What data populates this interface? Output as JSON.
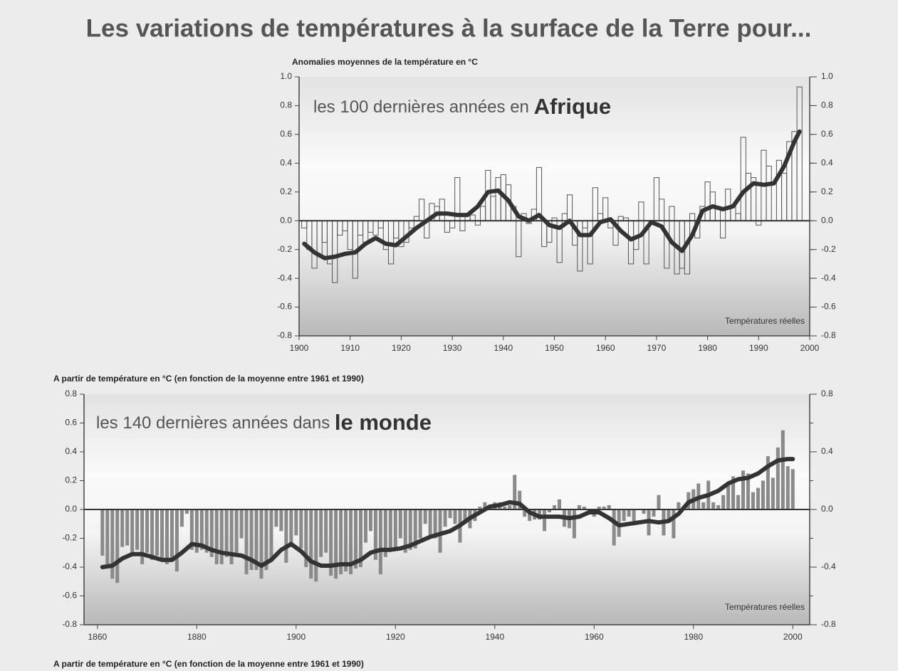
{
  "title": "Les variations de températures à la surface de la Terre pour...",
  "footer": "A partir de température en °C (en fonction de la moyenne entre 1961 et 1990)",
  "chart_data": [
    {
      "type": "step",
      "y_label": "Anomalies moyennes de la température en °C",
      "annotation": "les 100 dernières années en ",
      "annotation_bold": "Afrique",
      "note": "Températures réelles",
      "color": "#555555",
      "x": [
        1901,
        1902,
        1903,
        1904,
        1905,
        1906,
        1907,
        1908,
        1909,
        1910,
        1911,
        1912,
        1913,
        1914,
        1915,
        1916,
        1917,
        1918,
        1919,
        1920,
        1921,
        1922,
        1923,
        1924,
        1925,
        1926,
        1927,
        1928,
        1929,
        1930,
        1931,
        1932,
        1933,
        1934,
        1935,
        1936,
        1937,
        1938,
        1939,
        1940,
        1941,
        1942,
        1943,
        1944,
        1945,
        1946,
        1947,
        1948,
        1949,
        1950,
        1951,
        1952,
        1953,
        1954,
        1955,
        1956,
        1957,
        1958,
        1959,
        1960,
        1961,
        1962,
        1963,
        1964,
        1965,
        1966,
        1967,
        1968,
        1969,
        1970,
        1971,
        1972,
        1973,
        1974,
        1975,
        1976,
        1977,
        1978,
        1979,
        1980,
        1981,
        1982,
        1983,
        1984,
        1985,
        1986,
        1987,
        1988,
        1989,
        1990,
        1991,
        1992,
        1993,
        1994,
        1995,
        1996,
        1997,
        1998
      ],
      "values": [
        -0.05,
        -0.2,
        -0.33,
        -0.25,
        -0.15,
        -0.3,
        -0.43,
        -0.1,
        -0.07,
        -0.2,
        -0.4,
        -0.1,
        -0.15,
        -0.08,
        -0.1,
        -0.05,
        -0.2,
        -0.3,
        -0.12,
        -0.18,
        -0.15,
        -0.05,
        0.03,
        0.15,
        -0.12,
        0.12,
        0.1,
        0.15,
        -0.08,
        -0.05,
        0.3,
        -0.07,
        0.05,
        0.04,
        -0.03,
        0.1,
        0.35,
        0.17,
        0.3,
        0.32,
        0.25,
        0.1,
        -0.25,
        0.05,
        -0.02,
        0.08,
        0.37,
        -0.18,
        -0.15,
        0.02,
        -0.29,
        0.05,
        0.18,
        -0.17,
        -0.35,
        -0.05,
        -0.3,
        0.23,
        0.05,
        0.16,
        -0.05,
        -0.17,
        0.03,
        0.02,
        -0.3,
        -0.2,
        0.13,
        -0.3,
        0.0,
        0.3,
        0.15,
        -0.33,
        0.1,
        -0.37,
        -0.33,
        -0.37,
        0.05,
        -0.12,
        0.1,
        0.27,
        0.2,
        0.1,
        -0.12,
        0.22,
        0.1,
        0.05,
        0.58,
        0.33,
        0.3,
        -0.03,
        0.49,
        0.38,
        0.0,
        0.42,
        0.33,
        0.55,
        0.62,
        0.93
      ],
      "smooth": {
        "color": "#333333",
        "x": [
          1901,
          1903,
          1905,
          1907,
          1909,
          1911,
          1913,
          1915,
          1917,
          1919,
          1921,
          1923,
          1925,
          1927,
          1929,
          1931,
          1933,
          1935,
          1937,
          1939,
          1941,
          1943,
          1945,
          1947,
          1949,
          1951,
          1953,
          1955,
          1957,
          1959,
          1961,
          1963,
          1965,
          1967,
          1969,
          1971,
          1973,
          1975,
          1977,
          1979,
          1981,
          1983,
          1985,
          1987,
          1989,
          1991,
          1993,
          1995,
          1997,
          1998
        ],
        "values": [
          -0.16,
          -0.22,
          -0.26,
          -0.25,
          -0.23,
          -0.22,
          -0.16,
          -0.12,
          -0.16,
          -0.17,
          -0.11,
          -0.05,
          0.0,
          0.05,
          0.05,
          0.04,
          0.04,
          0.1,
          0.2,
          0.21,
          0.14,
          0.03,
          0.0,
          0.04,
          -0.03,
          -0.05,
          0.0,
          -0.1,
          -0.1,
          -0.01,
          0.01,
          -0.07,
          -0.13,
          -0.1,
          -0.01,
          -0.04,
          -0.15,
          -0.21,
          -0.1,
          0.07,
          0.1,
          0.08,
          0.1,
          0.2,
          0.26,
          0.25,
          0.26,
          0.38,
          0.55,
          0.62
        ]
      },
      "xlim": [
        1900,
        2000
      ],
      "xticks": [
        1900,
        1910,
        1920,
        1930,
        1940,
        1950,
        1960,
        1970,
        1980,
        1990,
        2000
      ],
      "ylim": [
        -0.8,
        1.0
      ],
      "yticks": [
        {
          "value": 1,
          "label": "1.0"
        },
        0.8,
        0.6,
        0.4,
        0.2,
        {
          "value": 0,
          "label": "0.0"
        },
        -0.2,
        -0.4,
        -0.6,
        -0.8
      ],
      "y2ticks": [
        {
          "value": 1,
          "label": "1.0"
        },
        0.8,
        0.6,
        0.4,
        0.2,
        {
          "value": 0,
          "label": "0.0"
        },
        -0.2,
        -0.4,
        -0.6,
        -0.8
      ]
    },
    {
      "type": "bar",
      "y_label": "A partir de température en °C (en fonction de la moyenne entre 1961 et 1990)",
      "annotation": "les 140 dernières années dans ",
      "annotation_bold": "le monde",
      "note": "Températures réelles",
      "color": "#8a8a8a",
      "x": [
        1861,
        1862,
        1863,
        1864,
        1865,
        1866,
        1867,
        1868,
        1869,
        1870,
        1871,
        1872,
        1873,
        1874,
        1875,
        1876,
        1877,
        1878,
        1879,
        1880,
        1881,
        1882,
        1883,
        1884,
        1885,
        1886,
        1887,
        1888,
        1889,
        1890,
        1891,
        1892,
        1893,
        1894,
        1895,
        1896,
        1897,
        1898,
        1899,
        1900,
        1901,
        1902,
        1903,
        1904,
        1905,
        1906,
        1907,
        1908,
        1909,
        1910,
        1911,
        1912,
        1913,
        1914,
        1915,
        1916,
        1917,
        1918,
        1919,
        1920,
        1921,
        1922,
        1923,
        1924,
        1925,
        1926,
        1927,
        1928,
        1929,
        1930,
        1931,
        1932,
        1933,
        1934,
        1935,
        1936,
        1937,
        1938,
        1939,
        1940,
        1941,
        1942,
        1943,
        1944,
        1945,
        1946,
        1947,
        1948,
        1949,
        1950,
        1951,
        1952,
        1953,
        1954,
        1955,
        1956,
        1957,
        1958,
        1959,
        1960,
        1961,
        1962,
        1963,
        1964,
        1965,
        1966,
        1967,
        1968,
        1969,
        1970,
        1971,
        1972,
        1973,
        1974,
        1975,
        1976,
        1977,
        1978,
        1979,
        1980,
        1981,
        1982,
        1983,
        1984,
        1985,
        1986,
        1987,
        1988,
        1989,
        1990,
        1991,
        1992,
        1993,
        1994,
        1995,
        1996,
        1997,
        1998,
        1999,
        2000
      ],
      "values": [
        -0.32,
        -0.38,
        -0.48,
        -0.51,
        -0.26,
        -0.25,
        -0.3,
        -0.28,
        -0.38,
        -0.3,
        -0.35,
        -0.32,
        -0.35,
        -0.38,
        -0.35,
        -0.43,
        -0.12,
        -0.03,
        -0.28,
        -0.3,
        -0.28,
        -0.3,
        -0.33,
        -0.38,
        -0.38,
        -0.33,
        -0.38,
        -0.3,
        -0.2,
        -0.45,
        -0.42,
        -0.42,
        -0.48,
        -0.42,
        -0.35,
        -0.12,
        -0.15,
        -0.37,
        -0.26,
        -0.18,
        -0.27,
        -0.4,
        -0.48,
        -0.5,
        -0.33,
        -0.3,
        -0.46,
        -0.48,
        -0.45,
        -0.43,
        -0.45,
        -0.41,
        -0.4,
        -0.23,
        -0.15,
        -0.35,
        -0.45,
        -0.33,
        -0.29,
        -0.27,
        -0.2,
        -0.3,
        -0.28,
        -0.27,
        -0.2,
        -0.1,
        -0.2,
        -0.2,
        -0.3,
        -0.12,
        -0.06,
        -0.1,
        -0.23,
        -0.1,
        -0.13,
        -0.08,
        0.02,
        0.05,
        0.0,
        0.05,
        0.05,
        0.02,
        0.03,
        0.24,
        0.13,
        -0.05,
        -0.08,
        -0.07,
        -0.07,
        -0.15,
        -0.02,
        0.03,
        0.07,
        -0.12,
        -0.13,
        -0.2,
        0.03,
        0.02,
        -0.02,
        -0.05,
        0.02,
        0.02,
        0.03,
        -0.25,
        -0.19,
        -0.08,
        -0.05,
        -0.08,
        0.0,
        -0.03,
        -0.18,
        -0.05,
        0.1,
        -0.18,
        -0.08,
        -0.2,
        0.05,
        0.0,
        0.12,
        0.14,
        0.18,
        0.05,
        0.2,
        0.05,
        0.03,
        0.1,
        0.18,
        0.23,
        0.1,
        0.27,
        0.25,
        0.12,
        0.15,
        0.2,
        0.37,
        0.22,
        0.43,
        0.55,
        0.3,
        0.28
      ],
      "smooth": {
        "color": "#333333",
        "x": [
          1861,
          1863,
          1865,
          1867,
          1869,
          1871,
          1873,
          1875,
          1877,
          1879,
          1881,
          1883,
          1885,
          1887,
          1889,
          1891,
          1893,
          1895,
          1897,
          1899,
          1901,
          1903,
          1905,
          1907,
          1909,
          1911,
          1913,
          1915,
          1917,
          1919,
          1921,
          1923,
          1925,
          1927,
          1929,
          1931,
          1933,
          1935,
          1937,
          1939,
          1941,
          1943,
          1945,
          1947,
          1949,
          1951,
          1953,
          1955,
          1957,
          1959,
          1961,
          1963,
          1965,
          1967,
          1969,
          1971,
          1973,
          1975,
          1977,
          1979,
          1981,
          1983,
          1985,
          1987,
          1989,
          1991,
          1993,
          1995,
          1997,
          1999,
          2000
        ],
        "values": [
          -0.4,
          -0.39,
          -0.34,
          -0.31,
          -0.31,
          -0.33,
          -0.35,
          -0.35,
          -0.3,
          -0.24,
          -0.25,
          -0.28,
          -0.3,
          -0.31,
          -0.32,
          -0.35,
          -0.39,
          -0.35,
          -0.28,
          -0.24,
          -0.29,
          -0.36,
          -0.39,
          -0.39,
          -0.38,
          -0.38,
          -0.35,
          -0.3,
          -0.28,
          -0.28,
          -0.27,
          -0.25,
          -0.22,
          -0.19,
          -0.17,
          -0.15,
          -0.11,
          -0.06,
          -0.02,
          0.02,
          0.03,
          0.05,
          0.04,
          -0.02,
          -0.05,
          -0.05,
          -0.05,
          -0.06,
          -0.05,
          -0.02,
          -0.02,
          -0.06,
          -0.11,
          -0.1,
          -0.09,
          -0.08,
          -0.09,
          -0.08,
          -0.03,
          0.05,
          0.08,
          0.1,
          0.13,
          0.18,
          0.21,
          0.22,
          0.25,
          0.3,
          0.34,
          0.35,
          0.35
        ]
      },
      "xlim": [
        1857.3,
        2003.4
      ],
      "xticks": [
        1860,
        1880,
        1900,
        1920,
        1940,
        1960,
        1980,
        2000
      ],
      "ylim": [
        -0.8,
        0.8
      ],
      "yticks": [
        0.8,
        0.6,
        0.4,
        0.2,
        {
          "value": 0,
          "label": "0.0"
        },
        -0.2,
        -0.4,
        -0.6,
        -0.8
      ],
      "y2ticks": [
        0.8,
        0.4,
        {
          "value": 0,
          "label": "0.0"
        },
        -0.4,
        -0.8
      ]
    }
  ]
}
